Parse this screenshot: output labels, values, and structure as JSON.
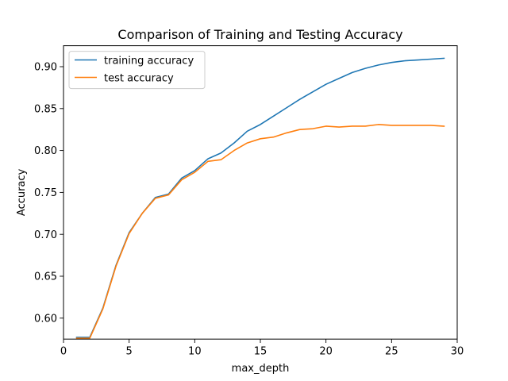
{
  "chart_data": {
    "type": "line",
    "title": "Comparison of Training and Testing Accuracy",
    "xlabel": "max_depth",
    "ylabel": "Accuracy",
    "xlim": [
      0,
      30
    ],
    "ylim": [
      0.575,
      0.925
    ],
    "xticks": [
      0,
      5,
      10,
      15,
      20,
      25,
      30
    ],
    "yticks": [
      0.6,
      0.65,
      0.7,
      0.75,
      0.8,
      0.85,
      0.9
    ],
    "ytick_labels": [
      "0.60",
      "0.65",
      "0.70",
      "0.75",
      "0.80",
      "0.85",
      "0.90"
    ],
    "grid": false,
    "legend_position": "top-left",
    "x": [
      1,
      2,
      3,
      4,
      5,
      6,
      7,
      8,
      9,
      10,
      11,
      12,
      13,
      14,
      15,
      16,
      17,
      18,
      19,
      20,
      21,
      22,
      23,
      24,
      25,
      26,
      27,
      28,
      29
    ],
    "series": [
      {
        "name": "training accuracy",
        "color": "#1f77b4",
        "values": [
          0.577,
          0.577,
          0.612,
          0.663,
          0.702,
          0.725,
          0.744,
          0.748,
          0.767,
          0.776,
          0.79,
          0.797,
          0.809,
          0.823,
          0.831,
          0.841,
          0.851,
          0.861,
          0.87,
          0.879,
          0.886,
          0.893,
          0.898,
          0.902,
          0.905,
          0.907,
          0.908,
          0.909,
          0.91
        ]
      },
      {
        "name": "test accuracy",
        "color": "#ff7f0e",
        "values": [
          0.576,
          0.576,
          0.611,
          0.662,
          0.701,
          0.725,
          0.743,
          0.747,
          0.765,
          0.774,
          0.787,
          0.789,
          0.8,
          0.809,
          0.814,
          0.816,
          0.821,
          0.825,
          0.826,
          0.829,
          0.828,
          0.829,
          0.829,
          0.831,
          0.83,
          0.83,
          0.83,
          0.83,
          0.829
        ]
      }
    ]
  }
}
